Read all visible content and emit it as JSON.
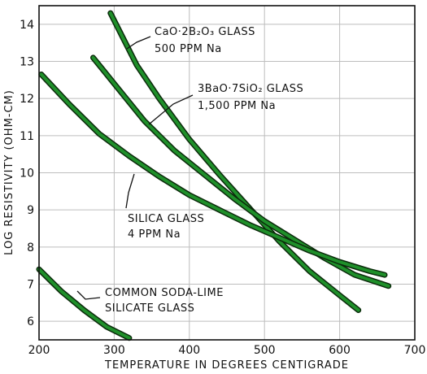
{
  "chart_data": {
    "type": "line",
    "title": "",
    "xlabel": "TEMPERATURE IN DEGREES CENTIGRADE",
    "ylabel": "LOG RESISTIVITY (OHM-CM)",
    "xlim": [
      200,
      700
    ],
    "ylim": [
      5.5,
      14.5
    ],
    "xticks": [
      200,
      300,
      400,
      500,
      600,
      700
    ],
    "yticks": [
      6,
      7,
      8,
      9,
      10,
      11,
      12,
      13,
      14
    ],
    "grid": true,
    "line_color": "#1f8f2a",
    "line_dark": "#0b2a0b",
    "series": [
      {
        "name_lines": [
          "CaO·2B₂O₃ GLASS",
          "500 PPM Na"
        ],
        "x": [
          295,
          330,
          360,
          400,
          440,
          480,
          520,
          560,
          600,
          625
        ],
        "y": [
          14.3,
          12.9,
          12.0,
          10.9,
          9.95,
          9.05,
          8.15,
          7.35,
          6.7,
          6.3
        ]
      },
      {
        "name_lines": [
          "3BaO·7SiO₂ GLASS",
          "1,500 PPM Na"
        ],
        "x": [
          272,
          300,
          340,
          380,
          420,
          460,
          500,
          540,
          580,
          620,
          665
        ],
        "y": [
          13.1,
          12.4,
          11.4,
          10.6,
          9.95,
          9.3,
          8.7,
          8.2,
          7.7,
          7.25,
          6.95
        ]
      },
      {
        "name_lines": [
          "SILICA GLASS",
          "4 PPM Na"
        ],
        "x": [
          203,
          240,
          280,
          320,
          360,
          400,
          440,
          480,
          520,
          560,
          600,
          640,
          660
        ],
        "y": [
          12.65,
          11.85,
          11.05,
          10.45,
          9.9,
          9.4,
          9.0,
          8.6,
          8.25,
          7.9,
          7.6,
          7.35,
          7.25
        ]
      },
      {
        "name_lines": [
          "COMMON SODA-LIME",
          "SILICATE GLASS"
        ],
        "x": [
          200,
          230,
          260,
          290,
          320
        ],
        "y": [
          7.4,
          6.8,
          6.3,
          5.85,
          5.55
        ]
      }
    ]
  }
}
